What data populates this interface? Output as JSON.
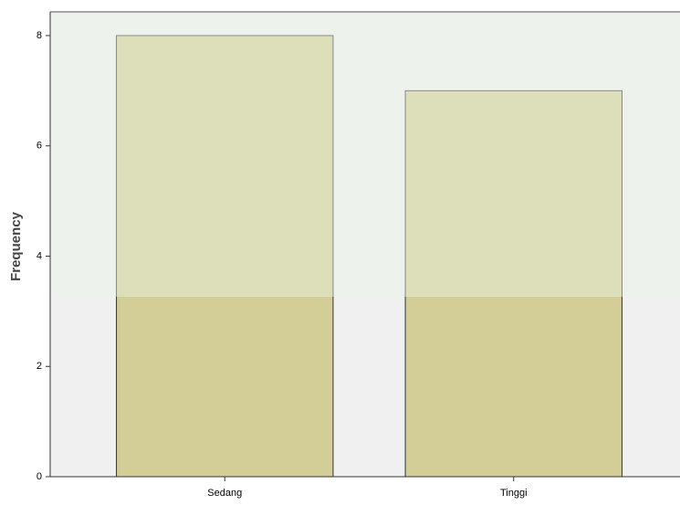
{
  "chart_data": {
    "type": "bar",
    "y_label": "Frequency",
    "categories": [
      "Sedang",
      "Tinggi"
    ],
    "values": [
      8,
      7
    ],
    "color": "#d3ce98",
    "ylim": [
      0,
      8.43
    ],
    "yticks": [
      0,
      2,
      4,
      6,
      8
    ]
  }
}
